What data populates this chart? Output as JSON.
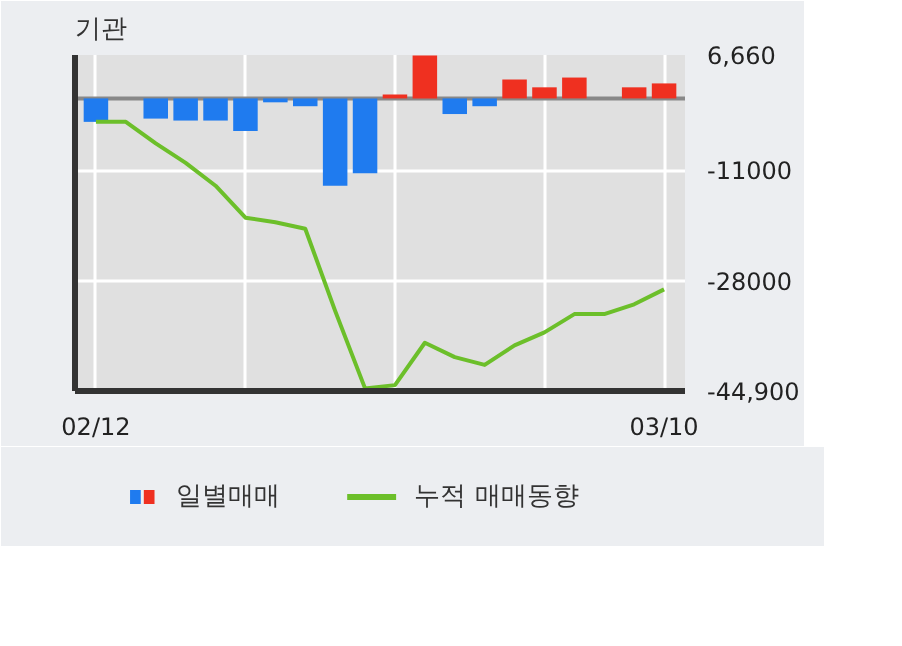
{
  "chart_data": {
    "type": "bar",
    "title": "기관",
    "categories": [
      "02/12",
      null,
      null,
      null,
      null,
      null,
      null,
      null,
      null,
      null,
      null,
      null,
      null,
      null,
      null,
      null,
      null,
      null,
      null,
      "03/10"
    ],
    "series": [
      {
        "name": "일별매매",
        "colors": [
          "#1f7bef",
          "#1f7bef",
          "#1f7bef",
          "#1f7bef",
          "#1f7bef",
          "#1f7bef",
          "#1f7bef",
          "#1f7bef",
          "#1f7bef",
          "#1f7bef",
          "#ef3020",
          "#ef3020",
          "#1f7bef",
          "#1f7bef",
          "#ef3020",
          "#ef3020",
          "#ef3020",
          "#ef3020",
          "#ef3020",
          "#ef3020"
        ],
        "values": [
          -3600,
          0,
          -3100,
          -3400,
          -3400,
          -5000,
          -600,
          -1200,
          -13400,
          -11500,
          600,
          6600,
          -2400,
          -1200,
          2900,
          1700,
          3200,
          0,
          1700,
          2300
        ]
      },
      {
        "name": "누적 매매동향",
        "type": "line",
        "color": "#6cbf2a",
        "values": [
          -3600,
          -3600,
          -6900,
          -9900,
          -13400,
          -18300,
          -19000,
          -20000,
          -32600,
          -44500,
          -44000,
          -37500,
          -39700,
          -40900,
          -37900,
          -35900,
          -33100,
          -33100,
          -31600,
          -29300
        ]
      }
    ],
    "ylim": [
      -44900,
      6660
    ],
    "yticks": [
      {
        "value": 6660,
        "label": "6,660"
      },
      -11000,
      -28000,
      {
        "value": -44900,
        "label": "-44,900"
      }
    ],
    "ref_lines": [
      {
        "axis": "y",
        "value": 0,
        "color": "#888888"
      }
    ],
    "grid": true,
    "legend": "bottom"
  }
}
